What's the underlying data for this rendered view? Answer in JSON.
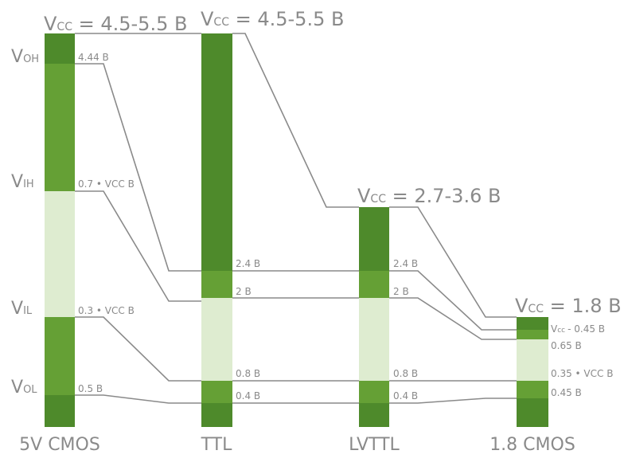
{
  "colors": {
    "dark_green": "#4e8a2b",
    "mid_green": "#65a035",
    "light_green": "#deecd0",
    "line_gray": "#8a8a8a",
    "text_gray": "#8a8a8a"
  },
  "columns": [
    {
      "name": "5V CMOS",
      "vcc_prefix": "V",
      "vcc_sub": "CC",
      "vcc_value": " = 4.5-5.5 B",
      "side_labels": [
        {
          "main": "V",
          "sub": "OH"
        },
        {
          "main": "V",
          "sub": "IH"
        },
        {
          "main": "V",
          "sub": "IL"
        },
        {
          "main": "V",
          "sub": "OL"
        }
      ],
      "levels": [
        "4.44 B",
        "0.7 • VCC B",
        "0.3 • VCC B",
        "0.5 B"
      ]
    },
    {
      "name": "TTL",
      "vcc_prefix": "V",
      "vcc_sub": "CC",
      "vcc_value": " = 4.5-5.5 B",
      "levels": [
        "2.4 B",
        "2 B",
        "0.8 B",
        "0.4 B"
      ]
    },
    {
      "name": "LVTTL",
      "vcc_prefix": "V",
      "vcc_sub": "CC",
      "vcc_value": " = 2.7-3.6 B",
      "levels": [
        "2.4 B",
        "2 B",
        "0.8 B",
        "0.4 B"
      ]
    },
    {
      "name": "1.8 CMOS",
      "vcc_prefix": "V",
      "vcc_sub": "CC",
      "vcc_value": " = 1.8 B",
      "levels": [
        "- 0.45 B",
        "0.65 B",
        "0.35 • VCC B",
        "0.45 B"
      ],
      "first_level_prefix": "V",
      "first_level_sub": "cc"
    }
  ]
}
